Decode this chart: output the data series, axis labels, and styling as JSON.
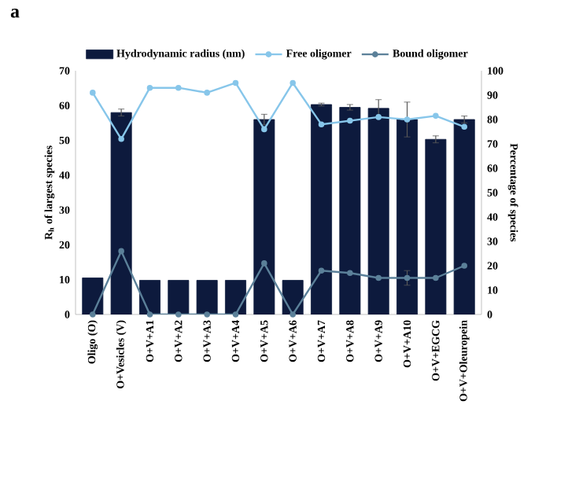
{
  "chart_data": {
    "type": "bar",
    "annotations": [
      "a"
    ],
    "ylabel": "R$_{h}$ of largest species",
    "y2label": "Percentage of species",
    "categories": [
      "Oligo (O)",
      "O+Vesicles (V)",
      "O+V+A1",
      "O+V+A2",
      "O+V+A3",
      "O+V+A4",
      "O+V+A5",
      "O+V+A6",
      "O+V+A7",
      "O+V+A8",
      "O+V+A9",
      "O+V+A10",
      "O+V+EGCG",
      "O+V+Oleuropein"
    ],
    "series": [
      {
        "name": "Hydrodynamic radius (nm)",
        "color": "#0d1a3d",
        "values": [
          10.5,
          58,
          9.8,
          9.8,
          9.8,
          9.8,
          56,
          9.8,
          60.3,
          59.5,
          59.2,
          56,
          50.3,
          56
        ],
        "errors": [
          null,
          1,
          null,
          null,
          null,
          null,
          1.5,
          null,
          0.4,
          0.8,
          2.5,
          5,
          1,
          1
        ]
      },
      {
        "name": "Free oligomer",
        "type": "line",
        "axis": "y2",
        "color": "#87c6ea",
        "marker": "circle",
        "values": [
          91,
          72,
          93,
          93,
          91,
          95,
          76,
          95,
          78,
          79.5,
          81,
          80,
          81.5,
          77
        ]
      },
      {
        "name": "Bound oligomer",
        "type": "line",
        "axis": "y2",
        "color": "#5b8099",
        "marker": "circle",
        "values": [
          0,
          26,
          0,
          0,
          0,
          0,
          21,
          0,
          18,
          17,
          15,
          15,
          15,
          20
        ],
        "errors": [
          null,
          null,
          null,
          null,
          null,
          null,
          null,
          null,
          null,
          null,
          null,
          3,
          null,
          null
        ]
      }
    ],
    "ylim": [
      0,
      70
    ],
    "yticks": [
      0,
      10,
      20,
      30,
      40,
      50,
      60,
      70
    ],
    "y2lim": [
      0,
      100
    ],
    "y2ticks": [
      0,
      10,
      20,
      30,
      40,
      50,
      60,
      70,
      80,
      90,
      100
    ],
    "legend": "top",
    "grid": false
  }
}
